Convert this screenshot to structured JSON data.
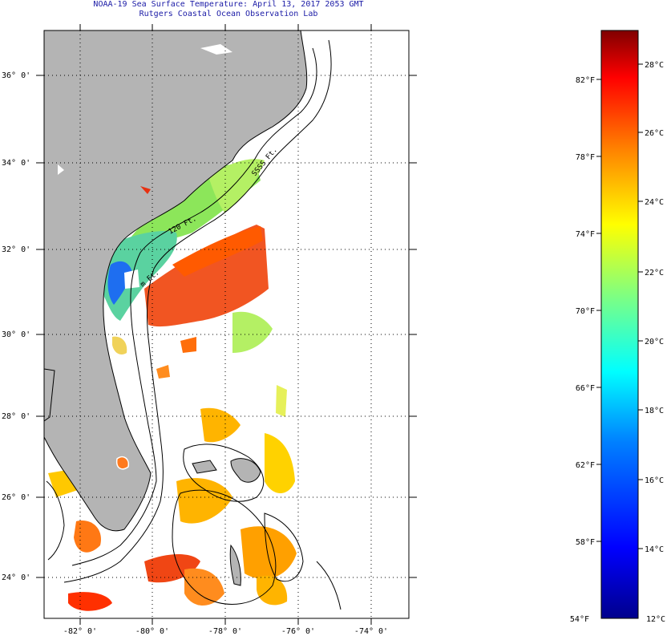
{
  "title": {
    "line1": "NOAA-19 Sea Surface Temperature:  April 13, 2017 2053 GMT",
    "line2": "Rutgers Coastal Ocean Observation Lab"
  },
  "map": {
    "lat_labels": [
      "36° 0'",
      "34° 0'",
      "32° 0'",
      "30° 0'",
      "28° 0'",
      "26° 0'",
      "24° 0'"
    ],
    "lon_labels": [
      "-82° 0'",
      "-80° 0'",
      "-78° 0'",
      "-76° 0'",
      "-74° 0'"
    ],
    "contour_labels": [
      "120 Ft.",
      "SSSS Ft.",
      "m Ft."
    ]
  },
  "colorbar": {
    "fahrenheit_labels": [
      "82°F",
      "78°F",
      "74°F",
      "70°F",
      "66°F",
      "62°F",
      "58°F",
      "54°F"
    ],
    "celsius_labels": [
      "28°C",
      "26°C",
      "24°C",
      "22°C",
      "20°C",
      "18°C",
      "16°C",
      "14°C",
      "12°C"
    ],
    "range_c": [
      12,
      29.5
    ]
  },
  "colors": {
    "land": "#b4b4b4",
    "title_text": "#1a1aa6",
    "warm": "#e83010",
    "cool": "#1040d0"
  }
}
